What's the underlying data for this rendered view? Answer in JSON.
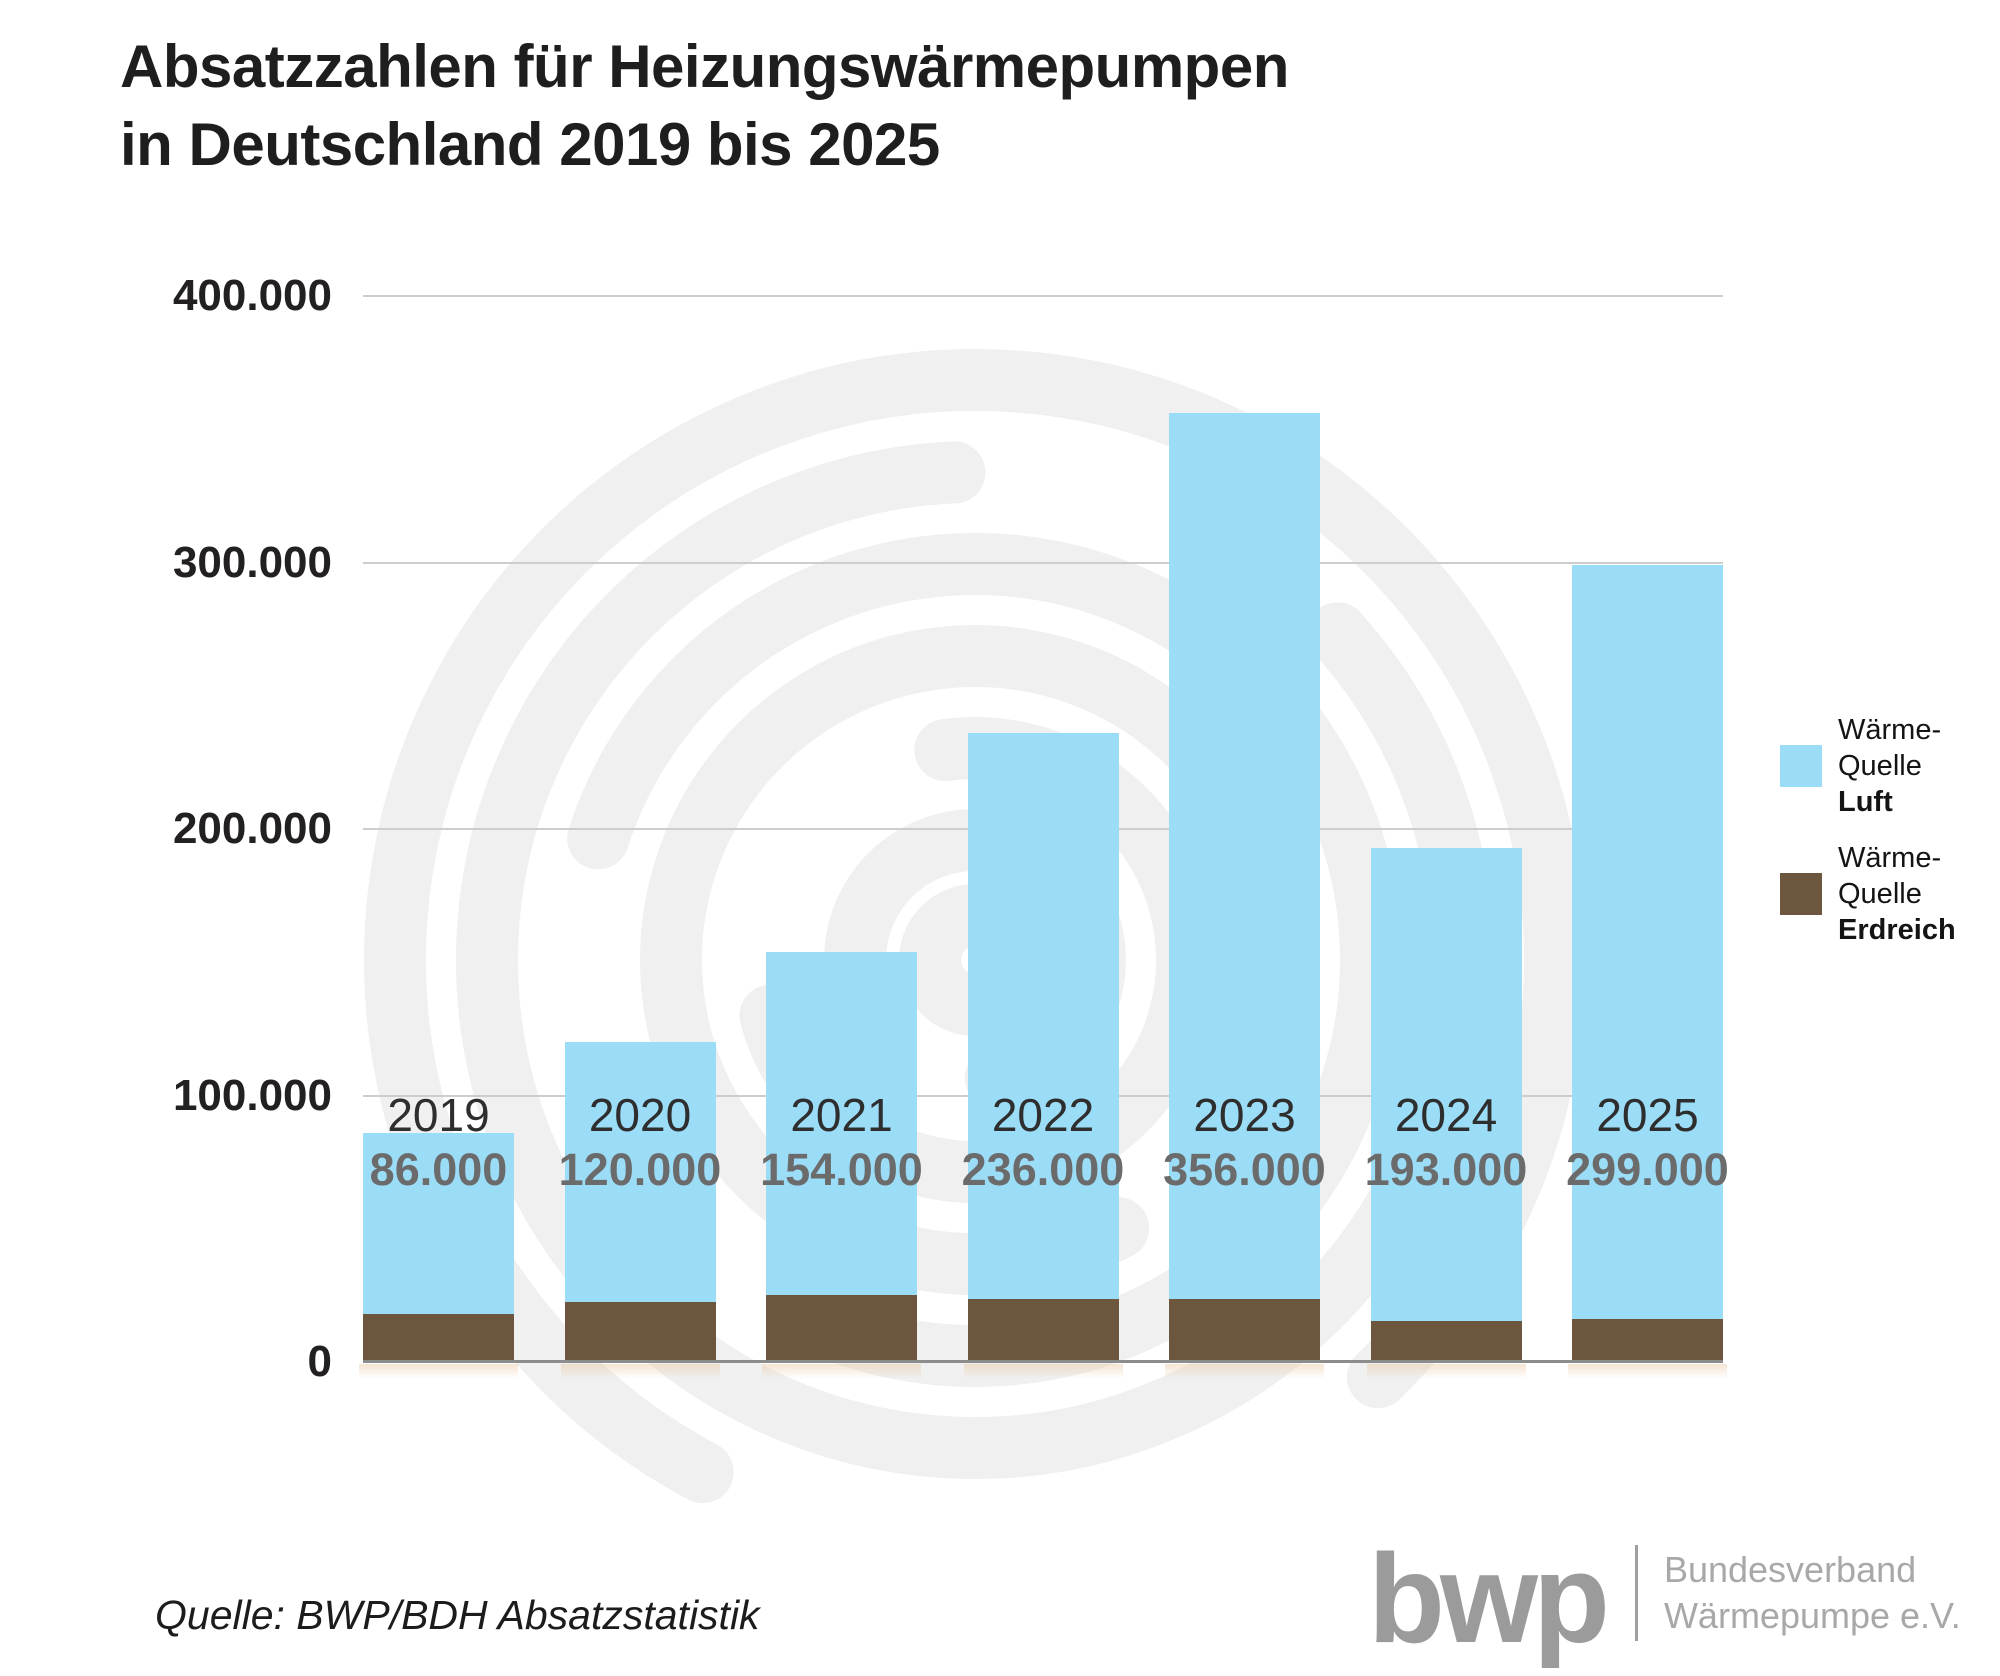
{
  "title": {
    "line1": "Absatzzahlen für Heizungswärmepumpen",
    "line2": "in Deutschland 2019 bis 2025"
  },
  "source": {
    "text": "Quelle: BWP/BDH Absatzstatistik"
  },
  "logo": {
    "mark": "bwp",
    "org_line1": "Bundesverband",
    "org_line2": "Wärmepumpe e.V."
  },
  "legend": {
    "items": [
      {
        "line1": "Wärme-",
        "line2": "Quelle",
        "emph": "Luft",
        "color": "#9BDCF7"
      },
      {
        "line1": "Wärme-",
        "line2": "Quelle",
        "emph": "Erdreich",
        "color": "#6D563E"
      }
    ]
  },
  "colors": {
    "luft_blue": "#9BDCF7",
    "erdreich_brown": "#6D563E",
    "gridline": "#cdcdcd",
    "baseline": "#8c8c8c",
    "watermark_gray": "#f0f0f0",
    "title_text": "#1e1e1e",
    "total_text": "#6b6b6b",
    "logo_gray": "#9b9b9b"
  },
  "chart_data": {
    "type": "bar",
    "stacked": true,
    "title": "Absatzzahlen für Heizungswärmepumpen in Deutschland 2019 bis 2025",
    "categories": [
      "2019",
      "2020",
      "2021",
      "2022",
      "2023",
      "2024",
      "2025"
    ],
    "totals": [
      86000,
      120000,
      154000,
      236000,
      356000,
      193000,
      299000
    ],
    "total_labels": [
      "86.000",
      "120.000",
      "154.000",
      "236.000",
      "356.000",
      "193.000",
      "299.000"
    ],
    "series": [
      {
        "name": "Wärme-Quelle Erdreich",
        "color": "#6D563E",
        "values_estimated_from_pixels": true,
        "values": [
          18000,
          22500,
          25000,
          23500,
          23500,
          15500,
          16000
        ]
      },
      {
        "name": "Wärme-Quelle Luft",
        "color": "#9BDCF7",
        "values_estimated_from_pixels": true,
        "values": [
          68000,
          97500,
          129000,
          212500,
          332500,
          177500,
          283000
        ]
      }
    ],
    "y_axis": {
      "max": 400000,
      "min": 0,
      "tick_values": [
        400000,
        300000,
        200000,
        100000,
        0
      ],
      "tick_labels": [
        "400.000",
        "300.000",
        "200.000",
        "100.000",
        "0"
      ],
      "grid": true
    },
    "legend_position": "right",
    "xlabel": "",
    "ylabel": ""
  }
}
